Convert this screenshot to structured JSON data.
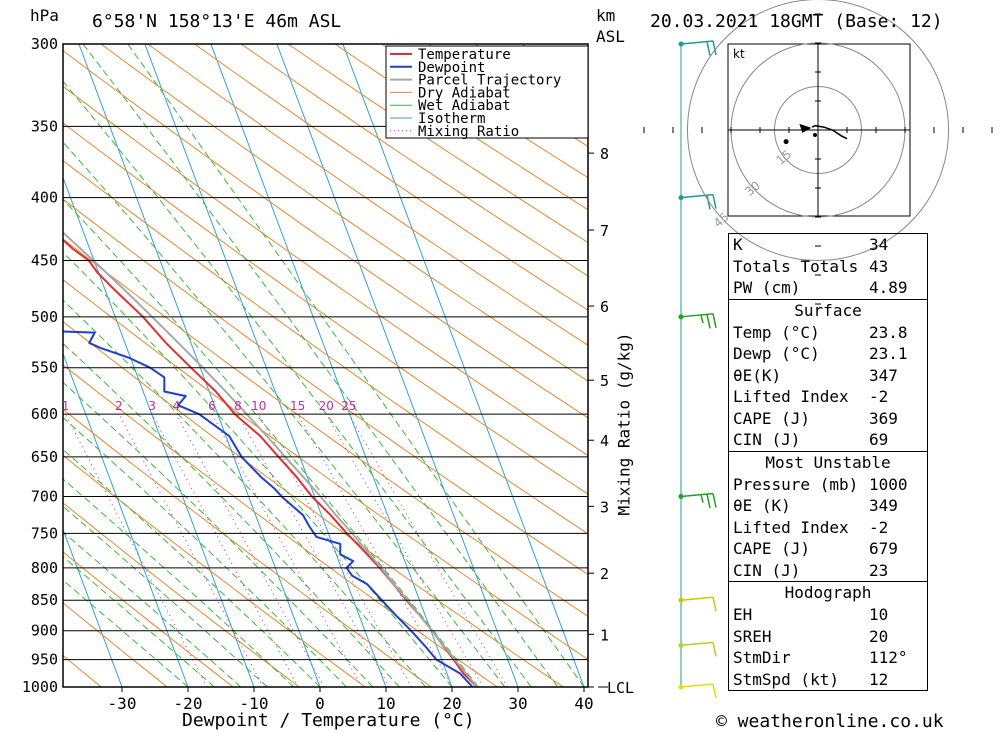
{
  "header": {
    "location": "6°58'N 158°13'E 46m ASL",
    "datetime": "20.03.2021 18GMT (Base: 12)",
    "unit_left": "hPa",
    "unit_right_top": "km",
    "unit_right_bottom": "ASL"
  },
  "footer": {
    "copyright": "© weatheronline.co.uk"
  },
  "chart_data": {
    "type": "line",
    "xlabel": "Dewpoint / Temperature (°C)",
    "ylabel": "hPa",
    "mixing_ratio_axis_label": "Mixing Ratio (g/kg)",
    "xlim": [
      -40,
      40
    ],
    "pressure_range": [
      1000,
      300
    ],
    "pressure_ticks": [
      300,
      350,
      400,
      450,
      500,
      550,
      600,
      650,
      700,
      750,
      800,
      850,
      900,
      950,
      1000
    ],
    "temperature_ticks": [
      -30,
      -20,
      -10,
      0,
      10,
      20,
      30,
      40
    ],
    "mixing_ratio_labels": [
      1,
      2,
      3,
      4,
      6,
      8,
      10,
      15,
      20,
      25
    ],
    "km_ticks": [
      {
        "label": "8",
        "p": 368
      },
      {
        "label": "7",
        "p": 425
      },
      {
        "label": "6",
        "p": 490
      },
      {
        "label": "5",
        "p": 563
      },
      {
        "label": "4",
        "p": 630
      },
      {
        "label": "3",
        "p": 713
      },
      {
        "label": "2",
        "p": 808
      },
      {
        "label": "1",
        "p": 906
      },
      {
        "label": "LCL",
        "p": 1000
      }
    ],
    "legend": [
      "Temperature",
      "Dewpoint",
      "Parcel Trajectory",
      "Dry Adiabat",
      "Wet Adiabat",
      "Isotherm",
      "Mixing Ratio"
    ],
    "series": [
      {
        "name": "Temperature",
        "color": "#e03030",
        "points": [
          [
            1000,
            23.8
          ],
          [
            975,
            22.5
          ],
          [
            950,
            21.8
          ],
          [
            925,
            21.0
          ],
          [
            900,
            20.2
          ],
          [
            875,
            19.2
          ],
          [
            850,
            18.0
          ],
          [
            825,
            17.0
          ],
          [
            800,
            15.8
          ],
          [
            775,
            14.4
          ],
          [
            750,
            12.8
          ],
          [
            725,
            11.4
          ],
          [
            700,
            9.6
          ],
          [
            675,
            8.4
          ],
          [
            650,
            6.8
          ],
          [
            625,
            5.2
          ],
          [
            600,
            2.6
          ],
          [
            575,
            1.0
          ],
          [
            550,
            -1.4
          ],
          [
            525,
            -3.8
          ],
          [
            500,
            -5.8
          ],
          [
            475,
            -8.6
          ],
          [
            460,
            -10.2
          ],
          [
            450,
            -10.8
          ],
          [
            440,
            -12.6
          ],
          [
            425,
            -14.6
          ],
          [
            400,
            -18.2
          ],
          [
            380,
            -21.8
          ],
          [
            365,
            -23.2
          ]
        ]
      },
      {
        "name": "Dewpoint",
        "color": "#1f3fd0",
        "points": [
          [
            1000,
            23.1
          ],
          [
            975,
            22.0
          ],
          [
            950,
            19.2
          ],
          [
            925,
            18.2
          ],
          [
            900,
            17.0
          ],
          [
            875,
            15.6
          ],
          [
            850,
            14.3
          ],
          [
            825,
            13.0
          ],
          [
            812,
            11.2
          ],
          [
            800,
            10.8
          ],
          [
            790,
            12.2
          ],
          [
            780,
            10.6
          ],
          [
            765,
            11.2
          ],
          [
            755,
            8.0
          ],
          [
            740,
            7.5
          ],
          [
            725,
            7.2
          ],
          [
            700,
            5.0
          ],
          [
            690,
            4.4
          ],
          [
            675,
            3.0
          ],
          [
            650,
            1.2
          ],
          [
            625,
            0.5
          ],
          [
            600,
            -2.8
          ],
          [
            590,
            -5.5
          ],
          [
            580,
            -3.8
          ],
          [
            575,
            -6.8
          ],
          [
            560,
            -6.0
          ],
          [
            550,
            -7.6
          ],
          [
            540,
            -10.2
          ],
          [
            530,
            -14.0
          ],
          [
            525,
            -15.4
          ],
          [
            515,
            -14.0
          ],
          [
            510,
            -36.0
          ],
          [
            500,
            -41.0
          ],
          [
            495,
            -38.0
          ],
          [
            485,
            -25.0
          ],
          [
            475,
            -26.0
          ],
          [
            460,
            -29.0
          ],
          [
            452,
            -37.0
          ],
          [
            450,
            -40.0
          ],
          [
            440,
            -46.0
          ],
          [
            425,
            -57.0
          ],
          [
            420,
            -70.0
          ],
          [
            405,
            -74.0
          ],
          [
            395,
            -76.0
          ],
          [
            385,
            -66.0
          ],
          [
            370,
            -66.0
          ],
          [
            350,
            -72.0
          ],
          [
            325,
            -78.0
          ],
          [
            300,
            -83.0
          ]
        ]
      },
      {
        "name": "Parcel Trajectory",
        "color": "#a8a8a8",
        "points": [
          [
            1000,
            23.8
          ],
          [
            975,
            22.9
          ],
          [
            950,
            22.0
          ],
          [
            925,
            21.1
          ],
          [
            900,
            20.2
          ],
          [
            875,
            19.2
          ],
          [
            850,
            18.2
          ],
          [
            825,
            17.1
          ],
          [
            800,
            16.0
          ],
          [
            775,
            14.8
          ],
          [
            750,
            13.6
          ],
          [
            725,
            12.2
          ],
          [
            700,
            10.9
          ],
          [
            675,
            9.4
          ],
          [
            650,
            7.8
          ],
          [
            625,
            6.2
          ],
          [
            600,
            4.4
          ],
          [
            575,
            2.5
          ],
          [
            550,
            0.4
          ],
          [
            525,
            -1.9
          ],
          [
            500,
            -4.4
          ],
          [
            475,
            -7.1
          ],
          [
            450,
            -10.1
          ],
          [
            425,
            -13.4
          ],
          [
            400,
            -17.1
          ],
          [
            375,
            -21.2
          ],
          [
            350,
            -25.7
          ]
        ]
      }
    ],
    "wind_barbs": [
      {
        "p": 300,
        "color": "#1aa090",
        "speed_kt": 20
      },
      {
        "p": 400,
        "color": "#1aa090",
        "speed_kt": 20
      },
      {
        "p": 500,
        "color": "#20a020",
        "speed_kt": 15
      },
      {
        "p": 700,
        "color": "#20a020",
        "speed_kt": 15
      },
      {
        "p": 850,
        "color": "#c8c800",
        "speed_kt": 10
      },
      {
        "p": 925,
        "color": "#b8d020",
        "speed_kt": 10
      },
      {
        "p": 1000,
        "color": "#e0e000",
        "speed_kt": 10
      }
    ],
    "hodograph": {
      "unit": "kt",
      "ring_labels": [
        "15",
        "30",
        "45"
      ],
      "trace_uv": [
        [
          -2,
          1
        ],
        [
          -1,
          1.5
        ],
        [
          2,
          1
        ],
        [
          5,
          0
        ],
        [
          8,
          -2
        ],
        [
          10,
          -3
        ]
      ],
      "storm_uv": [
        -4,
        -1
      ],
      "dot_uv": [
        -11,
        -4
      ]
    }
  },
  "indices": {
    "top": [
      {
        "label": "K",
        "value": "34"
      },
      {
        "label": "Totals Totals",
        "value": "43"
      },
      {
        "label": "PW (cm)",
        "value": "4.89"
      }
    ],
    "surface": {
      "title": "Surface",
      "rows": [
        {
          "label": "Temp (°C)",
          "value": "23.8"
        },
        {
          "label": "Dewp (°C)",
          "value": "23.1"
        },
        {
          "label": "θE(K)",
          "value": "347"
        },
        {
          "label": "Lifted Index",
          "value": "-2"
        },
        {
          "label": "CAPE (J)",
          "value": "369"
        },
        {
          "label": "CIN (J)",
          "value": "69"
        }
      ]
    },
    "most_unstable": {
      "title": "Most Unstable",
      "rows": [
        {
          "label": "Pressure (mb)",
          "value": "1000"
        },
        {
          "label": "θE (K)",
          "value": "349"
        },
        {
          "label": "Lifted Index",
          "value": "-2"
        },
        {
          "label": "CAPE (J)",
          "value": "679"
        },
        {
          "label": "CIN (J)",
          "value": "23"
        }
      ]
    },
    "hodograph": {
      "title": "Hodograph",
      "rows": [
        {
          "label": "EH",
          "value": "10"
        },
        {
          "label": "SREH",
          "value": "20"
        },
        {
          "label": "StmDir",
          "value": "112°"
        },
        {
          "label": "StmSpd (kt)",
          "value": "12"
        }
      ]
    }
  },
  "colors": {
    "temperature": "#e03030",
    "dewpoint": "#1f3fd0",
    "parcel": "#a8a8a8",
    "dry_adiabat": "#e08a30",
    "wet_adiabat": "#3cb83c",
    "isotherm": "#30a0e0",
    "mixing_ratio": "#c03090"
  }
}
